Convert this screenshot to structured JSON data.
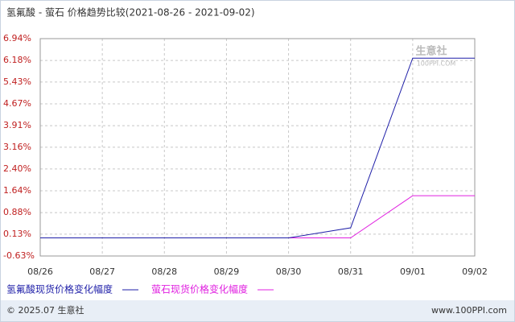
{
  "chart_data": {
    "type": "line",
    "title": "氢氟酸 - 萤石 价格趋势比较(2021-08-26 - 2021-09-02)",
    "categories": [
      "08/26",
      "08/27",
      "08/28",
      "08/29",
      "08/30",
      "08/31",
      "09/01",
      "09/02"
    ],
    "series": [
      {
        "name": "氢氟酸现货价格变化幅度",
        "color": "#1f1fa8",
        "values": [
          0,
          0,
          0,
          0,
          0,
          0.35,
          6.26,
          6.26
        ]
      },
      {
        "name": "萤石现货价格变化幅度",
        "color": "#e020e0",
        "values": [
          0,
          0,
          0,
          0,
          0,
          0,
          1.47,
          1.47
        ]
      }
    ],
    "ylim": [
      -0.63,
      6.94
    ],
    "yticks": [
      {
        "value": -0.63,
        "label": "-0.63%"
      },
      {
        "value": 0.13,
        "label": "0.13%"
      },
      {
        "value": 0.88,
        "label": "0.88%"
      },
      {
        "value": 1.64,
        "label": "1.64%"
      },
      {
        "value": 2.4,
        "label": "2.40%"
      },
      {
        "value": 3.16,
        "label": "3.16%"
      },
      {
        "value": 3.91,
        "label": "3.91%"
      },
      {
        "value": 4.67,
        "label": "4.67%"
      },
      {
        "value": 5.43,
        "label": "5.43%"
      },
      {
        "value": 6.18,
        "label": "6.18%"
      },
      {
        "value": 6.94,
        "label": "6.94%"
      }
    ],
    "grid": true,
    "watermark": [
      "生意社",
      "100PPI.COM"
    ],
    "footer": {
      "copyright": "© 2025.07 生意社",
      "site": "www.100PPI.com"
    }
  }
}
